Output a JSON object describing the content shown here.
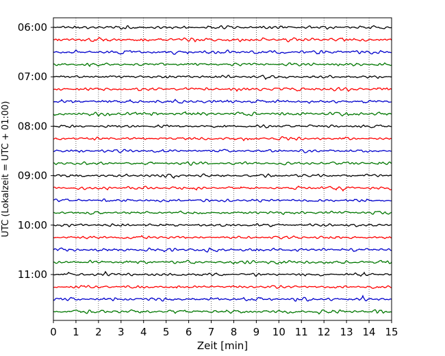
{
  "chart_data": {
    "type": "line",
    "title": "",
    "xlabel": "Zeit  [min]",
    "ylabel": "UTC (Lokalzeit = UTC + 01:00)",
    "xlim": [
      0,
      15
    ],
    "x_ticks": [
      "0",
      "1",
      "2",
      "3",
      "4",
      "5",
      "6",
      "7",
      "8",
      "9",
      "10",
      "11",
      "12",
      "13",
      "14",
      "15"
    ],
    "y_ticks": [
      "06:00",
      "07:00",
      "08:00",
      "09:00",
      "10:00",
      "11:00"
    ],
    "grid": "vertical dotted",
    "trace_interval_min": 15,
    "series": [
      {
        "label": "06:00",
        "color": "#000000",
        "amplitude": 0.35
      },
      {
        "label": "06:15",
        "color": "#ff0000",
        "amplitude": 0.45
      },
      {
        "label": "06:30",
        "color": "#0000cc",
        "amplitude": 0.4
      },
      {
        "label": "06:45",
        "color": "#007700",
        "amplitude": 0.35
      },
      {
        "label": "07:00",
        "color": "#000000",
        "amplitude": 0.35
      },
      {
        "label": "07:15",
        "color": "#ff0000",
        "amplitude": 0.4
      },
      {
        "label": "07:30",
        "color": "#0000cc",
        "amplitude": 0.4
      },
      {
        "label": "07:45",
        "color": "#007700",
        "amplitude": 0.4
      },
      {
        "label": "08:00",
        "color": "#000000",
        "amplitude": 0.35
      },
      {
        "label": "08:15",
        "color": "#ff0000",
        "amplitude": 0.35
      },
      {
        "label": "08:30",
        "color": "#0000cc",
        "amplitude": 0.35
      },
      {
        "label": "08:45",
        "color": "#007700",
        "amplitude": 0.35
      },
      {
        "label": "09:00",
        "color": "#000000",
        "amplitude": 0.35
      },
      {
        "label": "09:15",
        "color": "#ff0000",
        "amplitude": 0.35
      },
      {
        "label": "09:30",
        "color": "#0000cc",
        "amplitude": 0.35
      },
      {
        "label": "09:45",
        "color": "#007700",
        "amplitude": 0.35
      },
      {
        "label": "10:00",
        "color": "#000000",
        "amplitude": 0.35
      },
      {
        "label": "10:15",
        "color": "#ff0000",
        "amplitude": 0.35
      },
      {
        "label": "10:30",
        "color": "#0000cc",
        "amplitude": 0.4
      },
      {
        "label": "10:45",
        "color": "#007700",
        "amplitude": 0.4
      },
      {
        "label": "11:00",
        "color": "#000000",
        "amplitude": 0.35
      },
      {
        "label": "11:15",
        "color": "#ff0000",
        "amplitude": 0.35
      },
      {
        "label": "11:30",
        "color": "#0000cc",
        "amplitude": 0.4
      },
      {
        "label": "11:45",
        "color": "#007700",
        "amplitude": 0.4
      }
    ]
  }
}
